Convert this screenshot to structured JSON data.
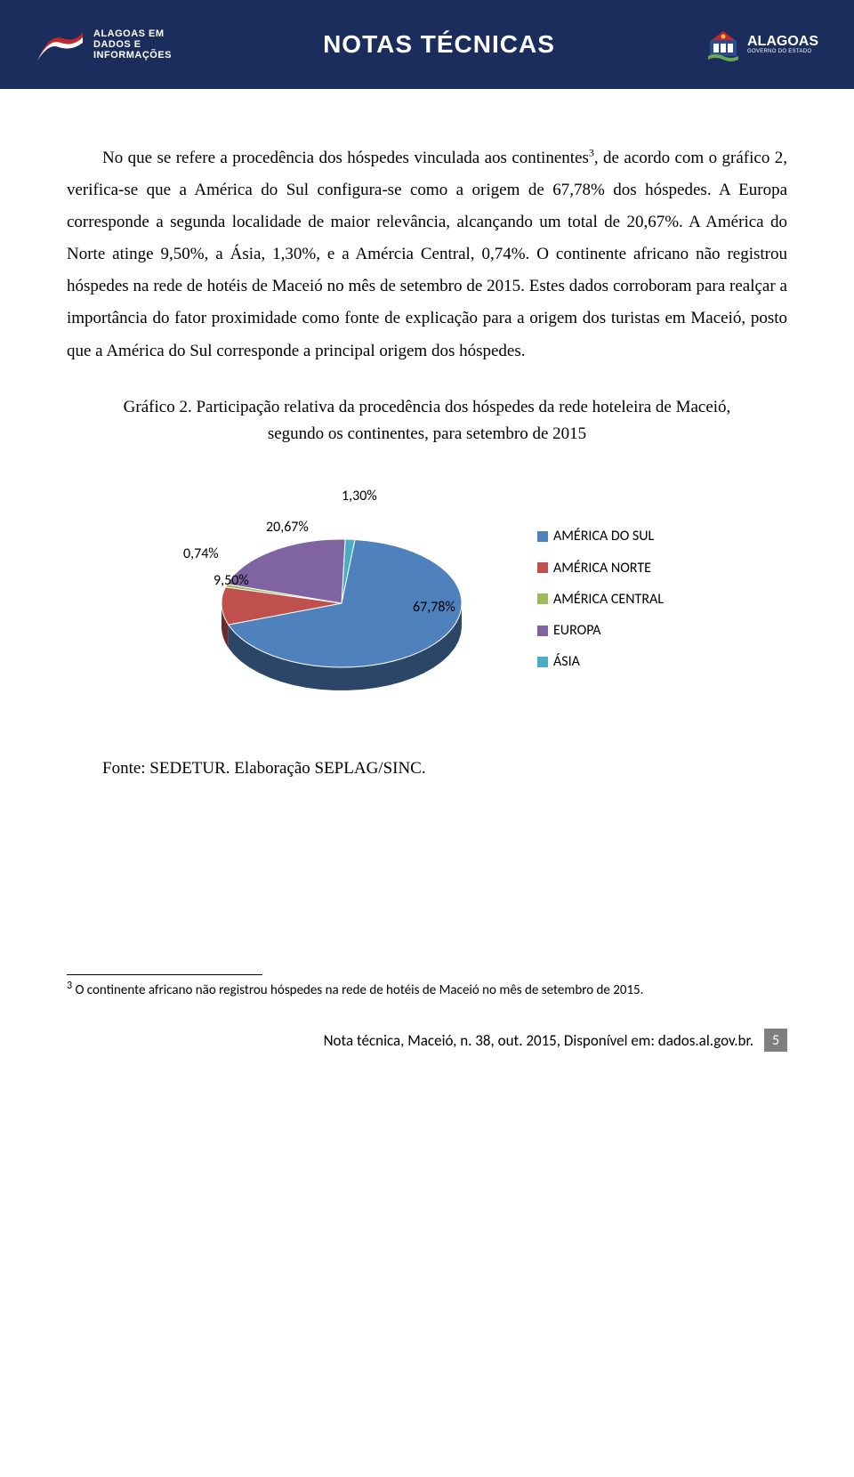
{
  "header": {
    "left_logo_text_line1": "ALAGOAS EM",
    "left_logo_text_line2": "DADOS E",
    "left_logo_text_line3": "INFORMAÇÕES",
    "title": "NOTAS TÉCNICAS",
    "right_logo_text": "ALAGOAS",
    "right_logo_sub": "GOVERNO DO ESTADO"
  },
  "paragraph1": "No que se refere a procedência dos hóspedes vinculada aos continentes",
  "paragraph1_sup": "3",
  "paragraph1_cont": ", de acordo com o gráfico 2, verifica-se que a América do Sul configura-se como a origem de 67,78% dos hóspedes. A Europa corresponde a segunda localidade de maior relevância, alcançando um total de 20,67%. A América do Norte atinge 9,50%, a Ásia, 1,30%, e a Amércia Central, 0,74%. O continente africano não registrou hóspedes na rede de hotéis de Maceió no mês de setembro de 2015. Estes dados corroboram para realçar a importância do fator proximidade como fonte de explicação para a origem dos turistas em Maceió, posto que a América do Sul corresponde a principal origem dos hóspedes.",
  "chart_title": "Gráfico 2. Participação relativa da procedência dos hóspedes da rede hoteleira de Maceió, segundo os continentes, para setembro de 2015",
  "chart": {
    "type": "pie-3d",
    "slices": [
      {
        "label": "AMÉRICA DO SUL",
        "value": 67.78,
        "display": "67,78%",
        "color": "#4f81bd"
      },
      {
        "label": "AMÉRICA NORTE",
        "value": 9.5,
        "display": "9,50%",
        "color": "#c0504d"
      },
      {
        "label": "AMÉRICA CENTRAL",
        "value": 0.74,
        "display": "0,74%",
        "color": "#9bbb59"
      },
      {
        "label": "EUROPA",
        "value": 20.67,
        "display": "20,67%",
        "color": "#8064a2"
      },
      {
        "label": "ÁSIA",
        "value": 1.3,
        "display": "1,30%",
        "color": "#4bacc6"
      }
    ],
    "label_font": "Calibri",
    "label_fontsize": 16,
    "legend_fontsize": 16,
    "side_color": "#2e4a73"
  },
  "source": "Fonte: SEDETUR. Elaboração SEPLAG/SINC.",
  "footnote_num": "3",
  "footnote_text": " O continente africano não registrou hóspedes na rede de hotéis de Maceió no mês de setembro de 2015.",
  "footer_text": "Nota técnica, Maceió, n. 38, out. 2015, Disponível em: dados.al.gov.br.",
  "page_number": "5"
}
